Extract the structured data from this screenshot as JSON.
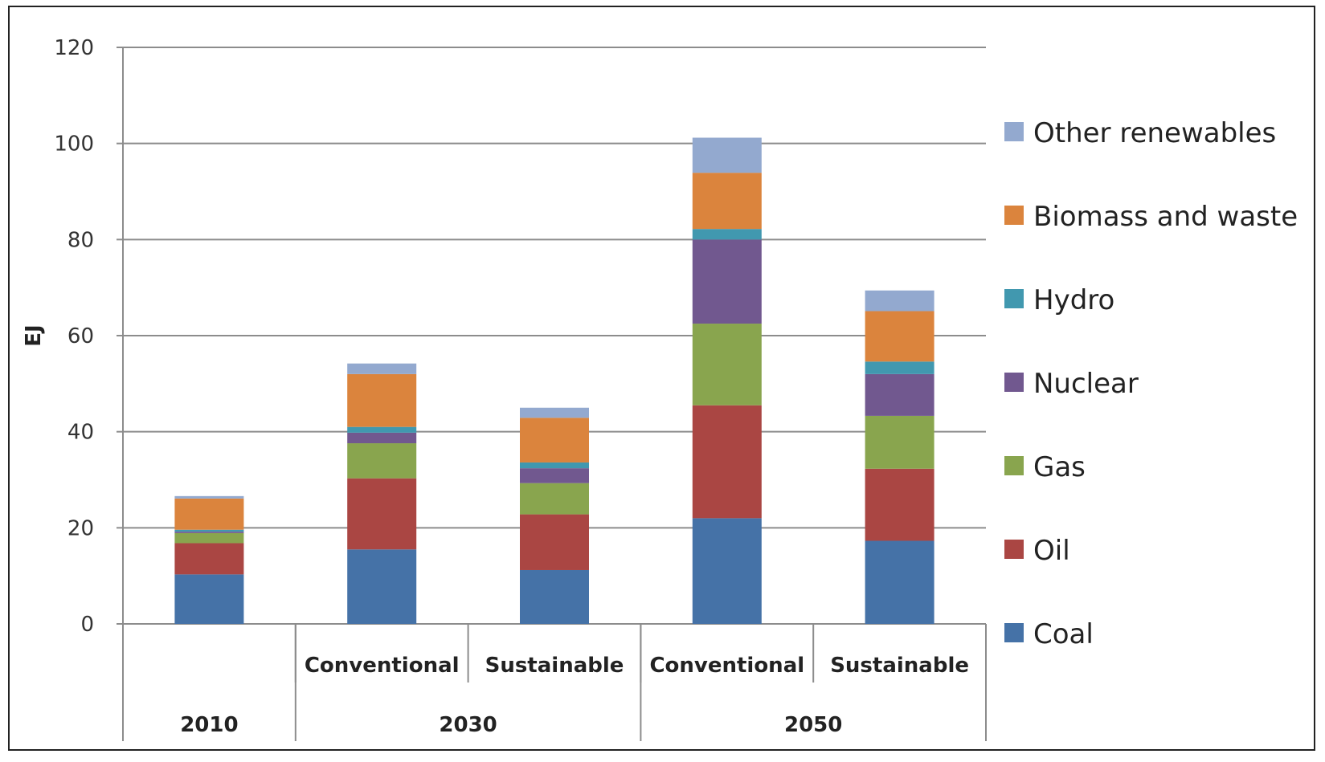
{
  "chart_data": {
    "type": "bar",
    "stacked": true,
    "title": "",
    "xlabel": "",
    "ylabel": "EJ",
    "ylim": [
      0,
      120
    ],
    "yticks": [
      0,
      20,
      40,
      60,
      80,
      100,
      120
    ],
    "grid": true,
    "legend_position": "right",
    "categories": [
      "2010",
      "2030 Conventional",
      "2030 Sustainable",
      "2050 Conventional",
      "2050 Sustainable"
    ],
    "category_labels": [
      "",
      "Conventional",
      "Sustainable",
      "Conventional",
      "Sustainable"
    ],
    "groups": [
      {
        "label": "2010",
        "span": 1
      },
      {
        "label": "2030",
        "span": 2
      },
      {
        "label": "2050",
        "span": 2
      }
    ],
    "series": [
      {
        "name": "Coal",
        "color": "#4572A7",
        "values": [
          10.3,
          15.5,
          11.2,
          22.0,
          17.3
        ]
      },
      {
        "name": "Oil",
        "color": "#AA4643",
        "values": [
          6.5,
          14.8,
          11.6,
          23.5,
          15.0
        ]
      },
      {
        "name": "Gas",
        "color": "#89A54E",
        "values": [
          2.1,
          7.3,
          6.5,
          17.0,
          11.0
        ]
      },
      {
        "name": "Nuclear",
        "color": "#71588F",
        "values": [
          0.3,
          2.2,
          3.1,
          17.5,
          8.7
        ]
      },
      {
        "name": "Hydro",
        "color": "#4198AF",
        "values": [
          0.4,
          1.2,
          1.2,
          2.2,
          2.6
        ]
      },
      {
        "name": "Biomass and waste",
        "color": "#DB843D",
        "values": [
          6.5,
          11.0,
          9.3,
          11.7,
          10.5
        ]
      },
      {
        "name": "Other renewables",
        "color": "#93A9CF",
        "values": [
          0.5,
          2.2,
          2.1,
          7.3,
          4.3
        ]
      }
    ]
  }
}
